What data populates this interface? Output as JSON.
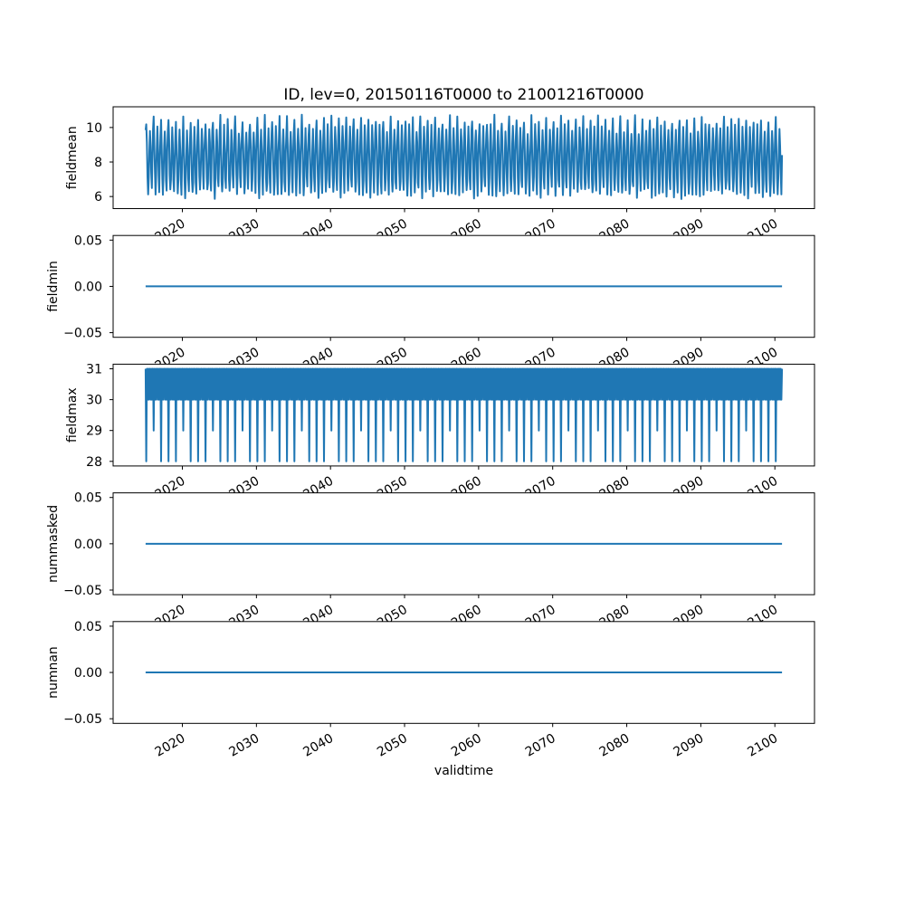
{
  "figure": {
    "background": "#ffffff"
  },
  "chart_data": {
    "type": "line",
    "title": "ID, lev=0, 20150116T0000 to 21001216T0000",
    "xlabel": "validtime",
    "line_color": "#1f77b4",
    "x_axis": {
      "start": "2015-01-16T0000",
      "end": "2100-12-16T0000",
      "interval": "monthly",
      "xlim_years": [
        2010.65,
        2105.35
      ],
      "tick_years": [
        2020,
        2030,
        2040,
        2050,
        2060,
        2070,
        2080,
        2090,
        2100
      ],
      "tick_labels": [
        "2020",
        "2030",
        "2040",
        "2050",
        "2060",
        "2070",
        "2080",
        "2090",
        "2100"
      ],
      "tick_label_rotation_deg": 30
    },
    "subplots": [
      {
        "ylabel": "fieldmean",
        "ylim": [
          5.3,
          11.2
        ],
        "yticks": [
          {
            "v": 10,
            "label": "10"
          },
          {
            "v": 8,
            "label": "8"
          },
          {
            "v": 6,
            "label": "6"
          }
        ],
        "series_type": "seasonal_cycle",
        "description": "Monthly values with an annual cycle oscillating between ~5.6 and ~10.9 for every year 2015-2100",
        "seasonal_profile_by_month": [
          9.6,
          10.45,
          9.1,
          7.2,
          6.15,
          7.0,
          8.8,
          9.9,
          8.9,
          7.1,
          6.3,
          8.3
        ],
        "noise_amplitude": 0.3,
        "data_min": 5.55,
        "data_max": 10.9
      },
      {
        "ylabel": "fieldmin",
        "ylim": [
          -0.055,
          0.055
        ],
        "yticks": [
          {
            "v": 0.05,
            "label": "0.05"
          },
          {
            "v": 0.0,
            "label": "0.00"
          },
          {
            "v": -0.05,
            "label": "−0.05"
          }
        ],
        "series_type": "constant",
        "value": 0
      },
      {
        "ylabel": "fieldmax",
        "ylim": [
          27.85,
          31.15
        ],
        "yticks": [
          {
            "v": 31,
            "label": "31"
          },
          {
            "v": 30,
            "label": "30"
          },
          {
            "v": 29,
            "label": "29"
          },
          {
            "v": 28,
            "label": "28"
          }
        ],
        "series_type": "days_in_month",
        "description": "Number of days in each month: band alternating 30/31, dips to 28 each February and 29 in leap years (2016-2096 every 4 yr; 2100 not leap)"
      },
      {
        "ylabel": "nummasked",
        "ylim": [
          -0.055,
          0.055
        ],
        "yticks": [
          {
            "v": 0.05,
            "label": "0.05"
          },
          {
            "v": 0.0,
            "label": "0.00"
          },
          {
            "v": -0.05,
            "label": "−0.05"
          }
        ],
        "series_type": "constant",
        "value": 0
      },
      {
        "ylabel": "numnan",
        "ylim": [
          -0.055,
          0.055
        ],
        "yticks": [
          {
            "v": 0.05,
            "label": "0.05"
          },
          {
            "v": 0.0,
            "label": "0.00"
          },
          {
            "v": -0.05,
            "label": "−0.05"
          }
        ],
        "series_type": "constant",
        "value": 0
      }
    ]
  }
}
